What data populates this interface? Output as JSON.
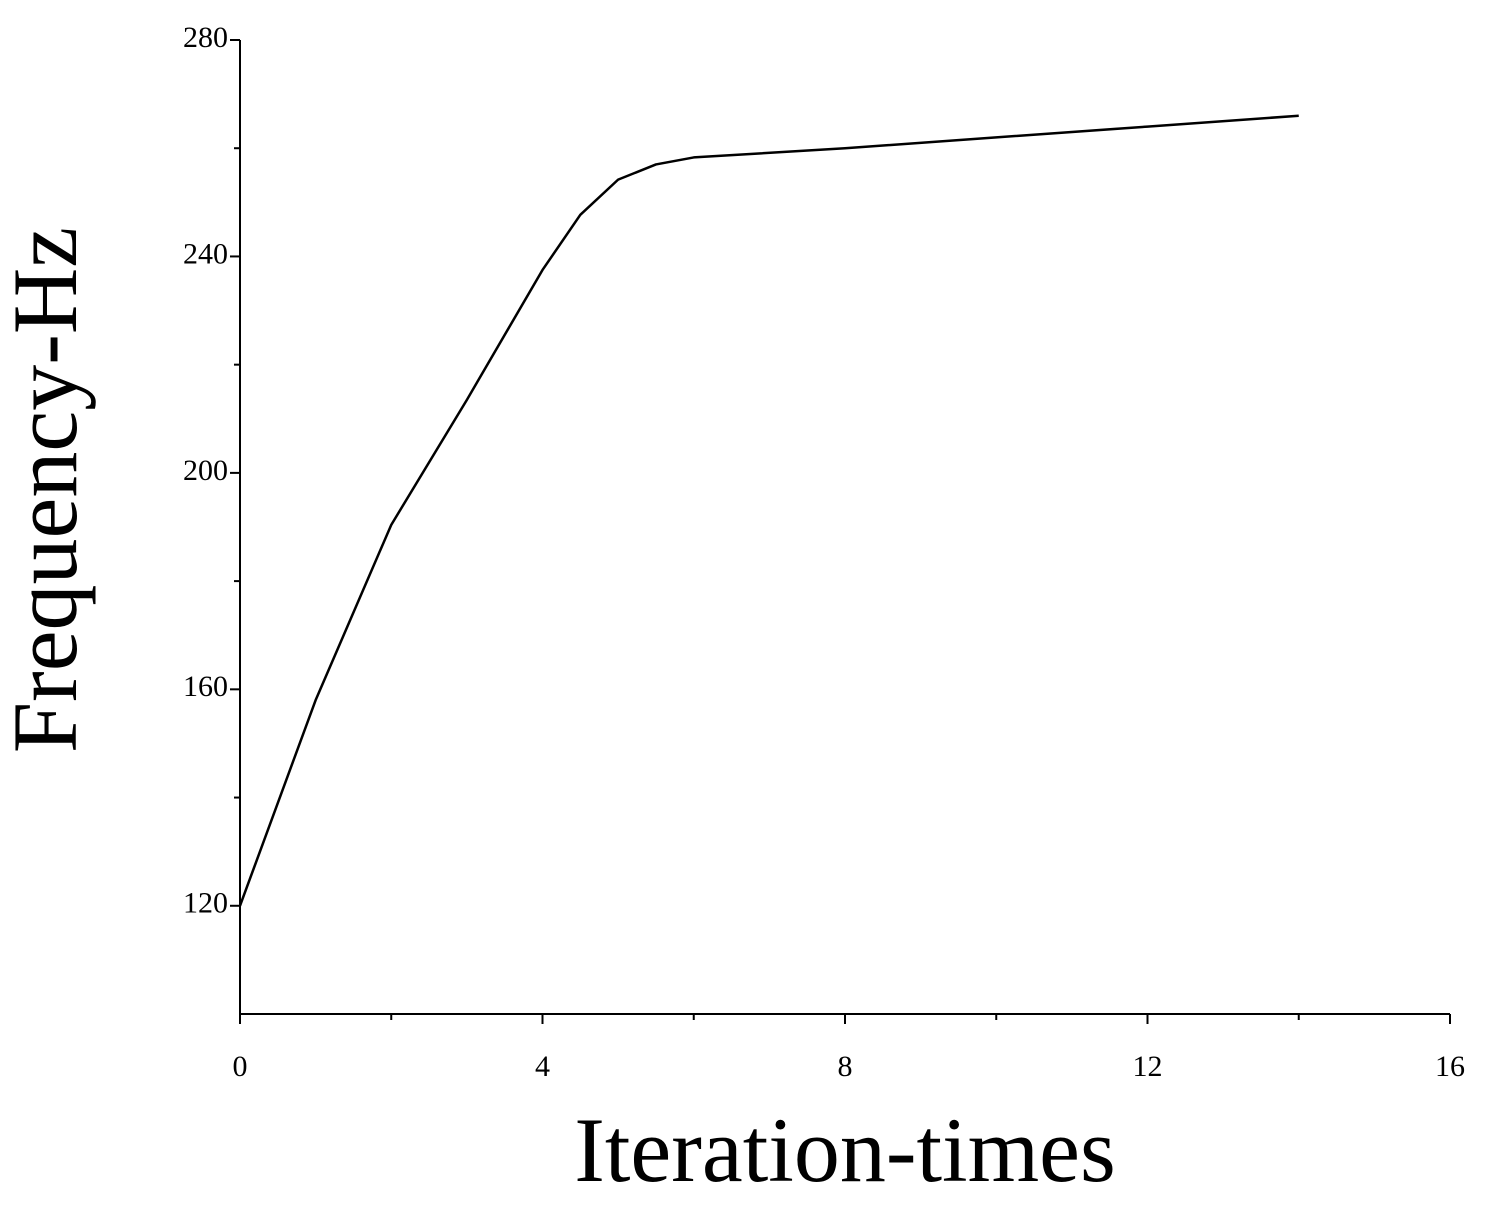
{
  "chart_data": {
    "type": "line",
    "x_label": "Iteration-times",
    "y_label": "Frequency-Hz",
    "x": [
      0,
      1,
      2,
      3,
      4,
      4.5,
      5,
      5.5,
      6,
      8,
      10,
      12,
      14
    ],
    "series": [
      {
        "color": "#000000",
        "values": [
          120,
          158,
          190.4,
          213.5,
          237.5,
          247.7,
          254.2,
          257,
          258.3,
          260,
          262,
          264,
          266
        ]
      }
    ],
    "xlim": [
      0,
      16
    ],
    "xticks": [
      0,
      4,
      8,
      12,
      16
    ],
    "xminorticks": [
      2,
      6,
      10,
      14
    ],
    "ylim": [
      100,
      280
    ],
    "yticks": [
      120,
      160,
      200,
      240,
      280
    ],
    "yminorticks": [
      140,
      180,
      220,
      260
    ],
    "grid": false
  }
}
